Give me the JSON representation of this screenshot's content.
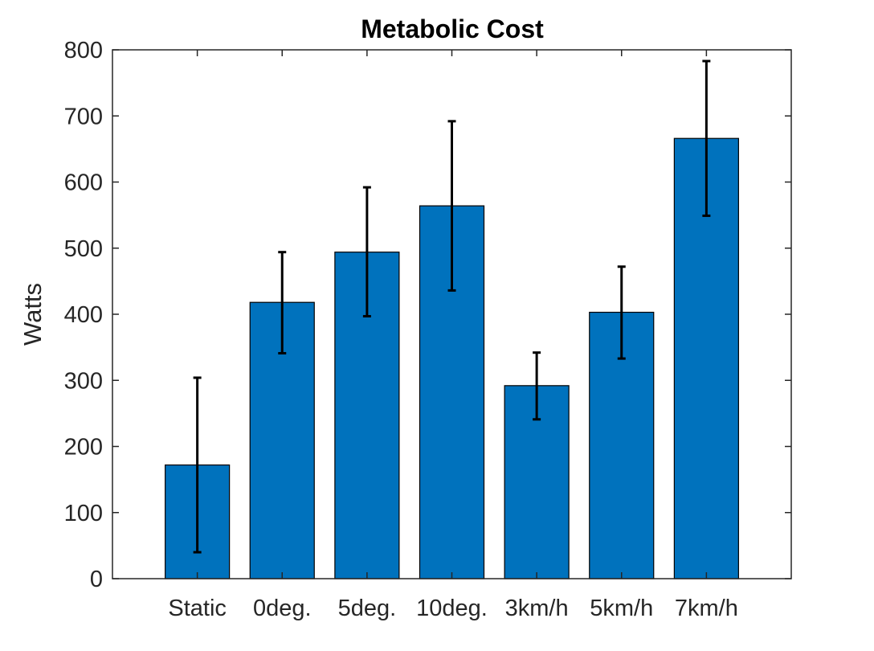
{
  "chart_data": {
    "type": "bar",
    "title": "Metabolic Cost",
    "xlabel": "",
    "ylabel": "Watts",
    "categories": [
      "Static",
      "0deg.",
      "5deg.",
      "10deg.",
      "3km/h",
      "5km/h",
      "7km/h"
    ],
    "values": [
      172,
      418,
      494,
      564,
      292,
      403,
      666
    ],
    "errors": [
      {
        "low": 40,
        "high": 304
      },
      {
        "low": 341,
        "high": 494
      },
      {
        "low": 397,
        "high": 592
      },
      {
        "low": 436,
        "high": 692
      },
      {
        "low": 241,
        "high": 342
      },
      {
        "low": 333,
        "high": 472
      },
      {
        "low": 549,
        "high": 783
      }
    ],
    "ylim": [
      0,
      800
    ],
    "yticks": [
      "0",
      "100",
      "200",
      "300",
      "400",
      "500",
      "600",
      "700",
      "800"
    ],
    "grid": false,
    "colors": {
      "bar": "#0072BD",
      "bar_edge": "#000000",
      "error_bar": "#000000",
      "axis": "#262626"
    }
  }
}
